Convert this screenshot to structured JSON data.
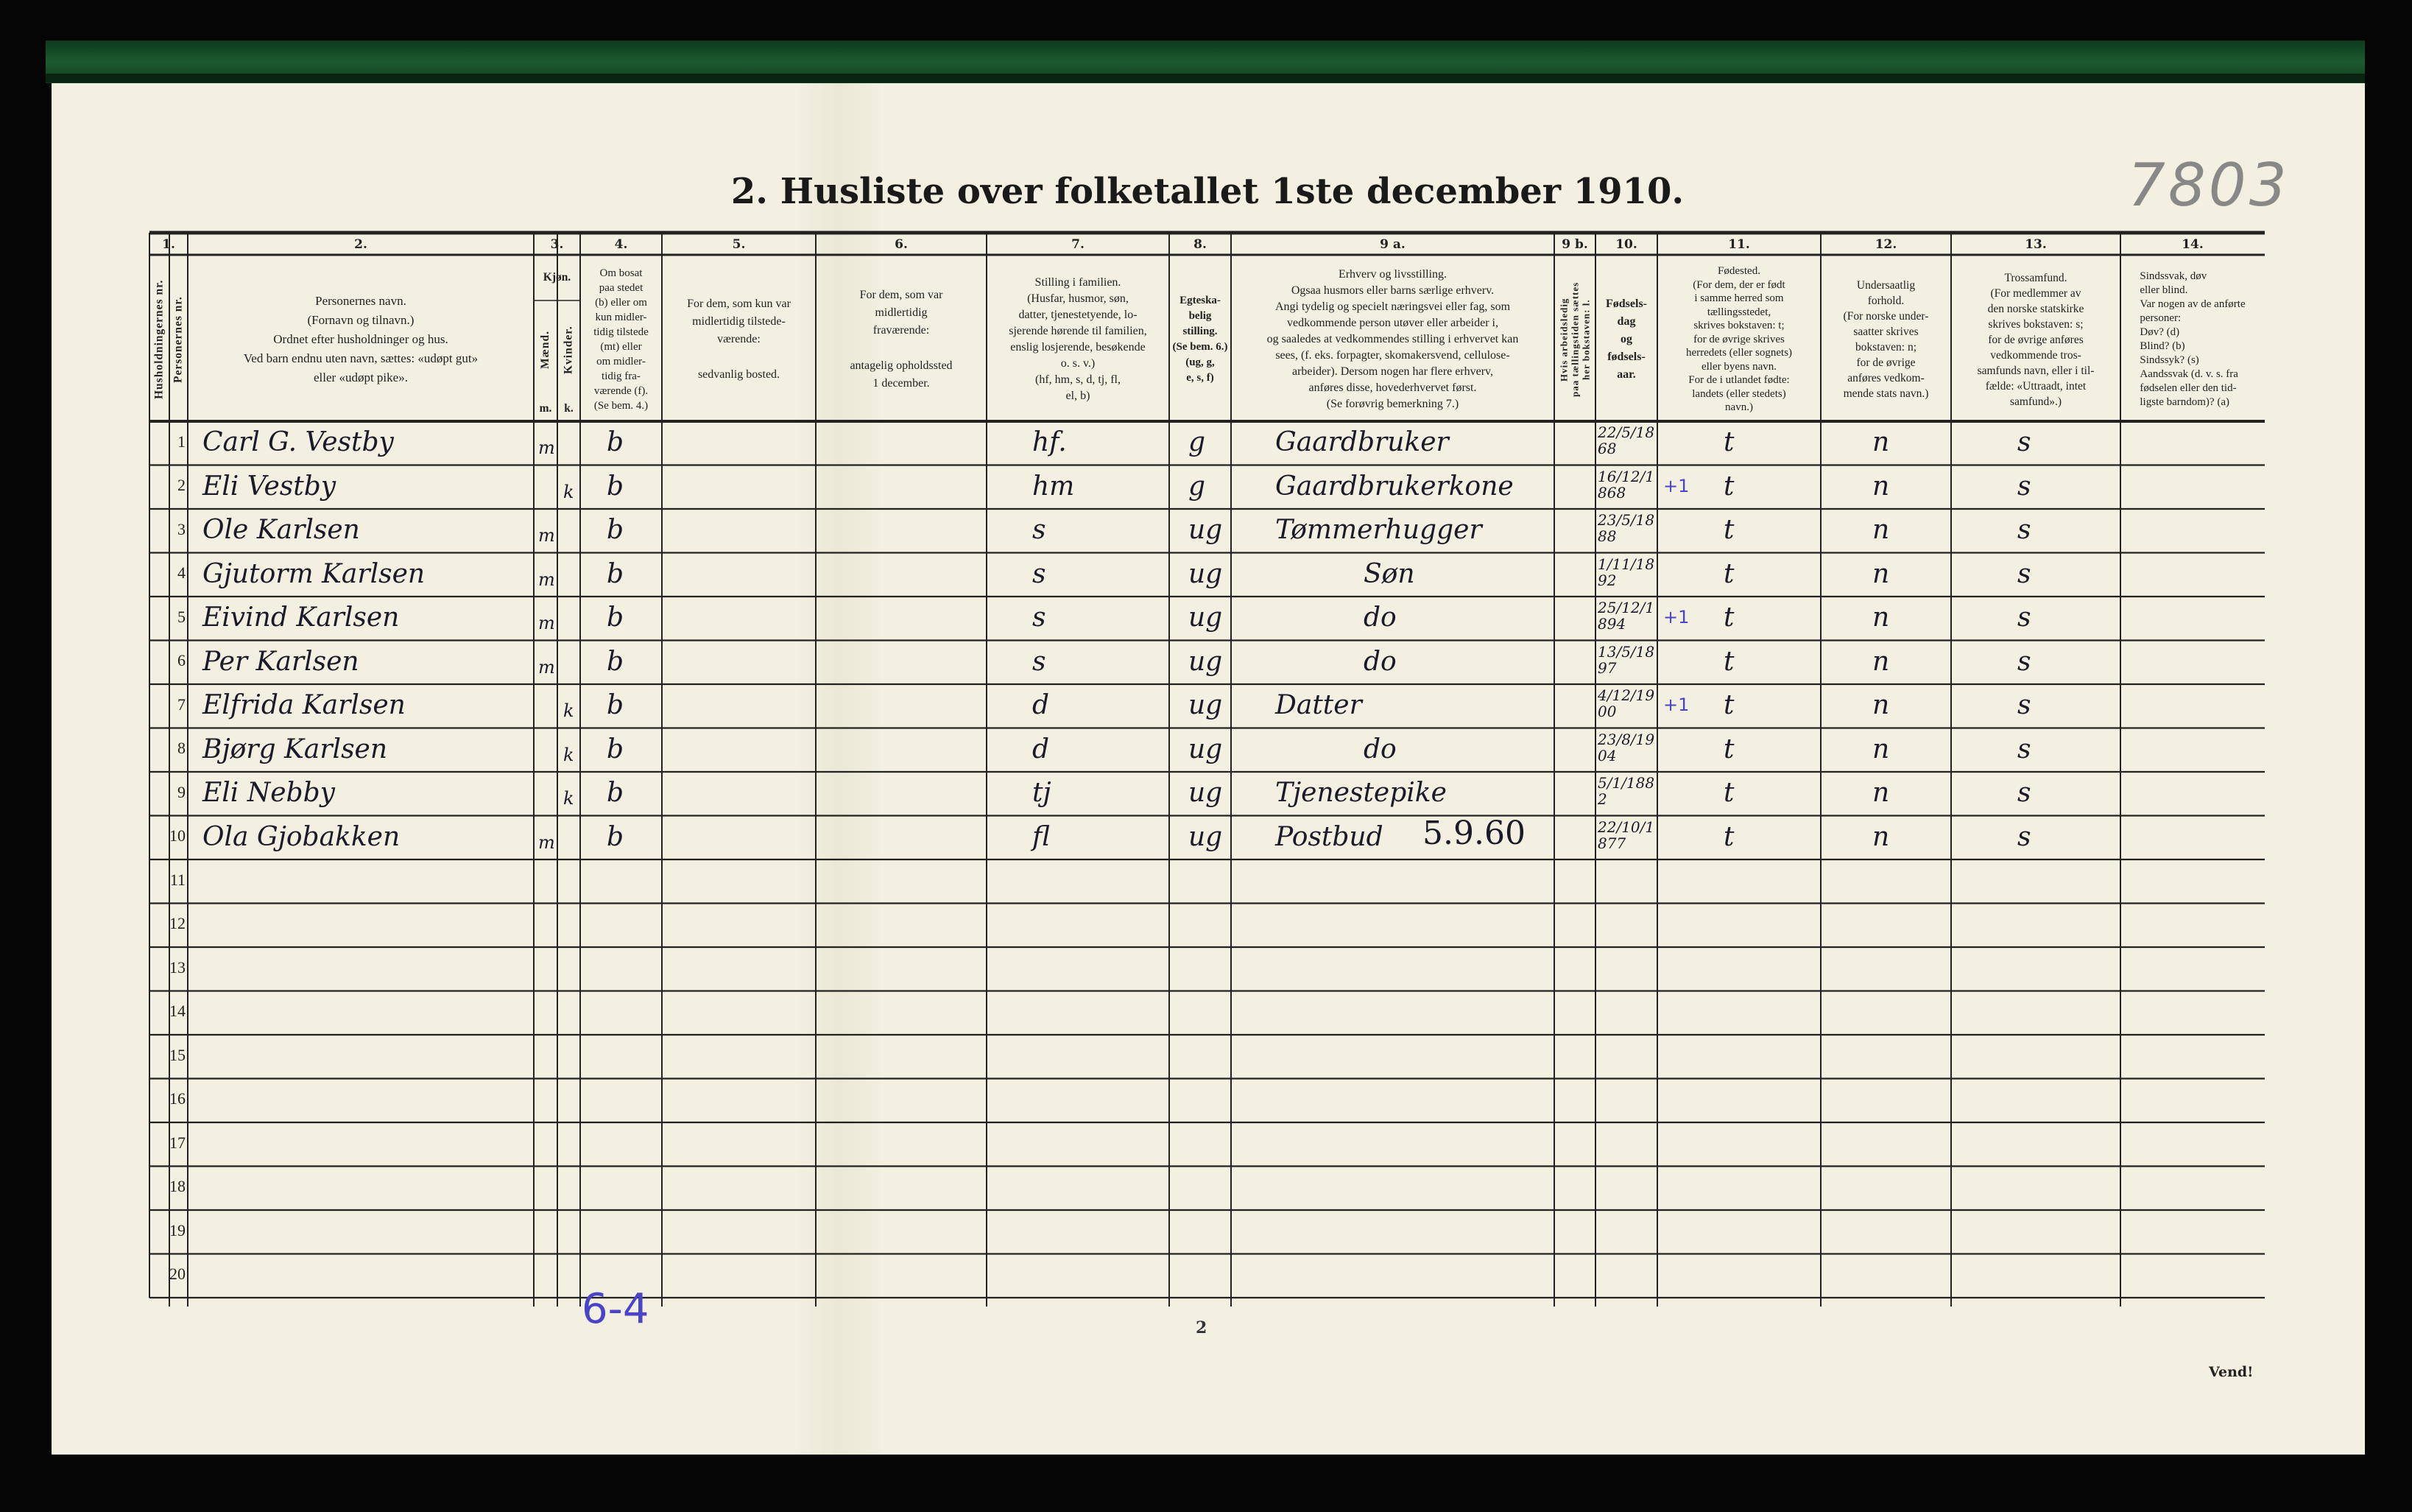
{
  "title": "2.  Husliste over folketallet 1ste december 1910.",
  "archive_number": "7803",
  "column_numbers": [
    "1.",
    "2.",
    "3.",
    "4.",
    "5.",
    "6.",
    "7.",
    "8.",
    "9 a.",
    "9 b.",
    "10.",
    "11.",
    "12.",
    "13.",
    "14."
  ],
  "headers": {
    "husholdning_nr": "Husholdningernes nr.",
    "person_nr": "Personernes nr.",
    "name": "Personernes navn.\n(Fornavn og tilnavn.)\nOrdnet efter husholdninger og hus.\nVed barn endnu uten navn, sættes: «udøpt gut»\neller «udøpt pike».",
    "kjonn": "Kjøn.",
    "maend": "Mænd.",
    "kvinder": "Kvinder.",
    "m": "m.",
    "k": "k.",
    "bosat": "Om bosat\npaa stedet\n(b) eller om\nkun midler-\ntidig tilstede\n(mt) eller\nom midler-\ntidig fra-\nværende (f).\n(Se bem. 4.)",
    "tilstede": "For dem, som kun var\nmidlertidig tilstede-\nværende:\n\nsedvanlig bosted.",
    "fravaerende": "For dem, som var\nmidlertidig\nfraværende:\n\nantagelig opholdssted\n1 december.",
    "stilling": "Stilling i familien.\n(Husfar, husmor, søn,\ndatter, tjenestetyende, lo-\nsjerende hørende til familien,\nenslig losjerende, besøkende\no. s. v.)\n(hf, hm, s, d, tj, fl,\nel, b)",
    "egteskap": "Egteska-\nbelig\nstilling.\n(Se bem. 6.)\n(ug, g,\ne, s, f)",
    "erhverv": "Erhverv og livsstilling.\nOgsaa husmors eller barns særlige erhverv.\nAngi tydelig og specielt næringsvei eller fag, som\nvedkommende person utøver eller arbeider i,\nog saaledes at vedkommendes stilling i erhvervet kan\nsees, (f. eks. forpagter, skomakersvend, cellulose-\narbeider). Dersom nogen har flere erhverv,\nanføres disse, hovederhvervet først.\n(Se forøvrig bemerkning 7.)",
    "arbeidsledig": "Hvis arbeidsledig\npaa tællingstiden sættes\nher bokstaven: l.",
    "fodselsdag": "Fødsels-\ndag\nog\nfødsels-\naar.",
    "fodested": "Fødested.\n(For dem, der er født\ni samme herred som\ntællingsstedet,\nskrives bokstaven: t;\nfor de øvrige skrives\nherredets (eller sognets)\neller byens navn.\nFor de i utlandet fødte:\nlandets (eller stedets)\nnavn.)",
    "undersaatlig": "Undersaatlig\nforhold.\n(For norske under-\nsaatter skrives\nbokstaven: n;\nfor de øvrige\nanføres vedkom-\nmende stats navn.)",
    "trossamfund": "Trossamfund.\n(For medlemmer av\nden norske statskirke\nskrives bokstaven: s;\nfor de øvrige anføres\nvedkommende tros-\nsamfunds navn, eller i til-\nfælde: «Uttraadt, intet\nsamfund».)",
    "sindssvak": "Sindssvak, døv\neller blind.\nVar nogen av de anførte\npersoner:\nDøv?        (d)\nBlind?      (b)\nSindssyk?  (s)\nAandssvak (d. v. s. fra\nfødselen eller den tid-\nligste barndom)? (a)"
  },
  "row_numbers": [
    "1",
    "2",
    "3",
    "4",
    "5",
    "6",
    "7",
    "8",
    "9",
    "10",
    "11",
    "12",
    "13",
    "14",
    "15",
    "16",
    "17",
    "18",
    "19",
    "20"
  ],
  "rows": [
    {
      "name": "Carl G. Vestby",
      "m": "m",
      "k": "",
      "bosat": "b",
      "stilling": "hf.",
      "egteskap": "g",
      "erhverv": "Gaardbruker",
      "note": "",
      "fodt": "22/5/1868",
      "mark": "",
      "fodested": "t",
      "undersaatlig": "n",
      "tro": "s"
    },
    {
      "name": "Eli Vestby",
      "m": "",
      "k": "k",
      "bosat": "b",
      "stilling": "hm",
      "egteskap": "g",
      "erhverv": "Gaardbrukerkone",
      "note": "",
      "fodt": "16/12/1868",
      "mark": "+1",
      "fodested": "t",
      "undersaatlig": "n",
      "tro": "s"
    },
    {
      "name": "Ole Karlsen",
      "m": "m",
      "k": "",
      "bosat": "b",
      "stilling": "s",
      "egteskap": "ug",
      "erhverv": "Tømmerhugger",
      "note": "",
      "fodt": "23/5/1888",
      "mark": "",
      "fodested": "t",
      "undersaatlig": "n",
      "tro": "s"
    },
    {
      "name": "Gjutorm Karlsen",
      "m": "m",
      "k": "",
      "bosat": "b",
      "stilling": "s",
      "egteskap": "ug",
      "erhverv": "Søn",
      "note": "",
      "fodt": "1/11/1892",
      "mark": "",
      "fodested": "t",
      "undersaatlig": "n",
      "tro": "s"
    },
    {
      "name": "Eivind Karlsen",
      "m": "m",
      "k": "",
      "bosat": "b",
      "stilling": "s",
      "egteskap": "ug",
      "erhverv": "do",
      "note": "",
      "fodt": "25/12/1894",
      "mark": "+1",
      "fodested": "t",
      "undersaatlig": "n",
      "tro": "s"
    },
    {
      "name": "Per Karlsen",
      "m": "m",
      "k": "",
      "bosat": "b",
      "stilling": "s",
      "egteskap": "ug",
      "erhverv": "do",
      "note": "",
      "fodt": "13/5/1897",
      "mark": "",
      "fodested": "t",
      "undersaatlig": "n",
      "tro": "s"
    },
    {
      "name": "Elfrida Karlsen",
      "m": "",
      "k": "k",
      "bosat": "b",
      "stilling": "d",
      "egteskap": "ug",
      "erhverv": "Datter",
      "note": "",
      "fodt": "4/12/1900",
      "mark": "+1",
      "fodested": "t",
      "undersaatlig": "n",
      "tro": "s"
    },
    {
      "name": "Bjørg Karlsen",
      "m": "",
      "k": "k",
      "bosat": "b",
      "stilling": "d",
      "egteskap": "ug",
      "erhverv": "do",
      "note": "",
      "fodt": "23/8/1904",
      "mark": "",
      "fodested": "t",
      "undersaatlig": "n",
      "tro": "s"
    },
    {
      "name": "Eli Nebby",
      "m": "",
      "k": "k",
      "bosat": "b",
      "stilling": "tj",
      "egteskap": "ug",
      "erhverv": "Tjenestepike",
      "note": "",
      "fodt": "5/1/1882",
      "mark": "",
      "fodested": "t",
      "undersaatlig": "n",
      "tro": "s"
    },
    {
      "name": "Ola Gjobakken",
      "m": "m",
      "k": "",
      "bosat": "b",
      "stilling": "fl",
      "egteskap": "ug",
      "erhverv": "Postbud",
      "note": "5.9.60",
      "fodt": "22/10/1877",
      "mark": "",
      "fodested": "t",
      "undersaatlig": "n",
      "tro": "s"
    }
  ],
  "pencil_note": "6-4",
  "page_number": "2",
  "footer": "Vend!"
}
